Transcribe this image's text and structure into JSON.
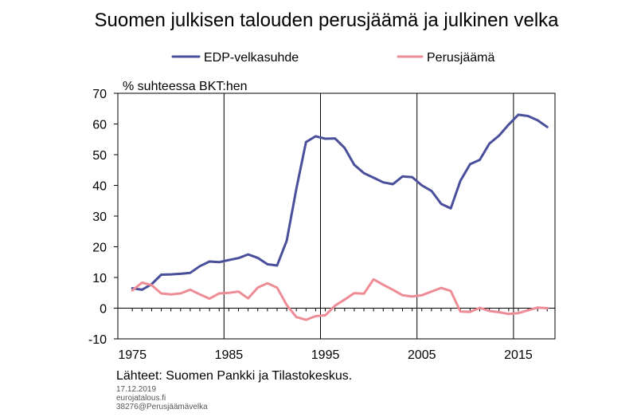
{
  "chart_data": {
    "type": "line",
    "title": "Suomen julkisen talouden perusjäämä ja julkinen velka",
    "ylabel": "% suhteessa BKT:hen",
    "xlabel": "",
    "xlim": [
      1973.5,
      2018.8
    ],
    "ylim": [
      -10,
      70
    ],
    "yticks": [
      -10,
      0,
      10,
      20,
      30,
      40,
      50,
      60,
      70
    ],
    "xtick_labels": [
      1975,
      1985,
      1995,
      2005,
      2015
    ],
    "grid": false,
    "legend": "top",
    "x": [
      1975,
      1976,
      1977,
      1978,
      1979,
      1980,
      1981,
      1982,
      1983,
      1984,
      1985,
      1986,
      1987,
      1988,
      1989,
      1990,
      1991,
      1992,
      1993,
      1994,
      1995,
      1996,
      1997,
      1998,
      1999,
      2000,
      2001,
      2002,
      2003,
      2004,
      2005,
      2006,
      2007,
      2008,
      2009,
      2010,
      2011,
      2012,
      2013,
      2014,
      2015,
      2016,
      2017,
      2018
    ],
    "series": [
      {
        "name": "EDP-velkasuhde",
        "color": "#4a4f9c",
        "values": [
          6.5,
          6.0,
          7.8,
          10.9,
          11.0,
          11.2,
          11.5,
          13.7,
          15.2,
          15.0,
          15.7,
          16.3,
          17.5,
          16.4,
          14.3,
          13.9,
          22.0,
          38.9,
          54.1,
          56.0,
          55.2,
          55.3,
          52.2,
          46.7,
          44.0,
          42.5,
          41.0,
          40.4,
          42.9,
          42.7,
          40.0,
          38.2,
          34.0,
          32.5,
          41.5,
          46.9,
          48.3,
          53.6,
          56.2,
          59.8,
          63.0,
          62.6,
          61.2,
          59.0
        ]
      },
      {
        "name": "Perusjäämä",
        "color": "#ee8c96",
        "values": [
          5.8,
          8.3,
          7.5,
          4.8,
          4.5,
          4.8,
          6.0,
          4.5,
          3.1,
          4.8,
          5.0,
          5.4,
          3.2,
          6.7,
          8.1,
          6.7,
          1.0,
          -2.9,
          -3.8,
          -2.6,
          -2.3,
          0.8,
          2.8,
          4.9,
          4.7,
          9.4,
          7.6,
          6.0,
          4.2,
          3.8,
          4.2,
          5.4,
          6.6,
          5.6,
          -1.1,
          -1.2,
          0.1,
          -0.9,
          -1.3,
          -1.9,
          -1.6,
          -0.7,
          0.2,
          0.0
        ]
      }
    ]
  },
  "footer": {
    "source": "Lähteet: Suomen Pankki ja Tilastokeskus.",
    "date": "17.12.2019",
    "site": "eurojatalous.fi",
    "code": "38276@Perusjäämävelka"
  }
}
